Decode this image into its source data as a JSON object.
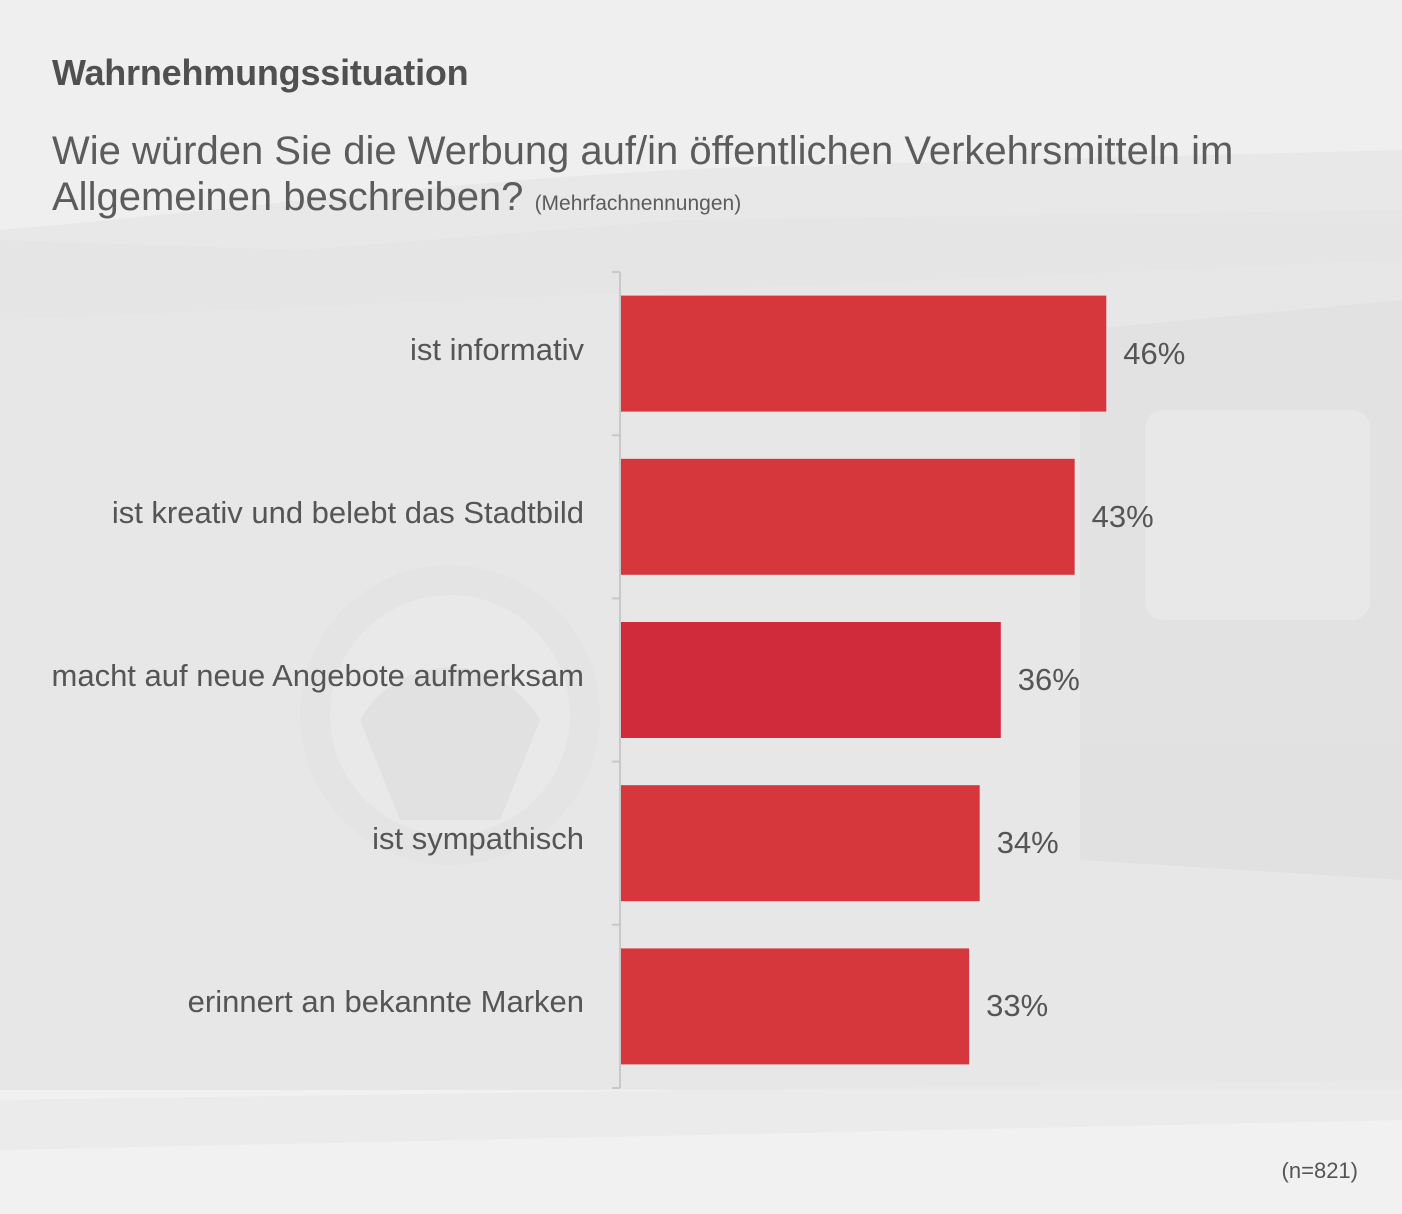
{
  "slide": {
    "eyebrow": "Wahrnehmungssituation",
    "question": "Wie würden Sie die Werbung auf/in öffentlichen Verkehrsmitteln im Allgemeinen beschreiben?",
    "question_note": "(Mehrfachnennungen)",
    "sample_size": "(n=821)"
  },
  "colors": {
    "bar": "#d6373d",
    "bar_highlight": "#cf2b3a",
    "axis": "#c8c8c8",
    "text": "#555555",
    "background": "#efefef"
  },
  "chart_data": {
    "type": "bar",
    "orientation": "horizontal",
    "title": "",
    "xlabel": "",
    "ylabel": "",
    "xlim": [
      0,
      100
    ],
    "grid": false,
    "categories": [
      "ist informativ",
      "ist kreativ und belebt das Stadtbild",
      "macht auf neue Angebote aufmerksam",
      "ist sympathisch",
      "erinnert an bekannte Marken"
    ],
    "values": [
      46,
      43,
      36,
      34,
      33
    ],
    "value_labels": [
      "46%",
      "43%",
      "36%",
      "34%",
      "33%"
    ],
    "unit": "%"
  }
}
